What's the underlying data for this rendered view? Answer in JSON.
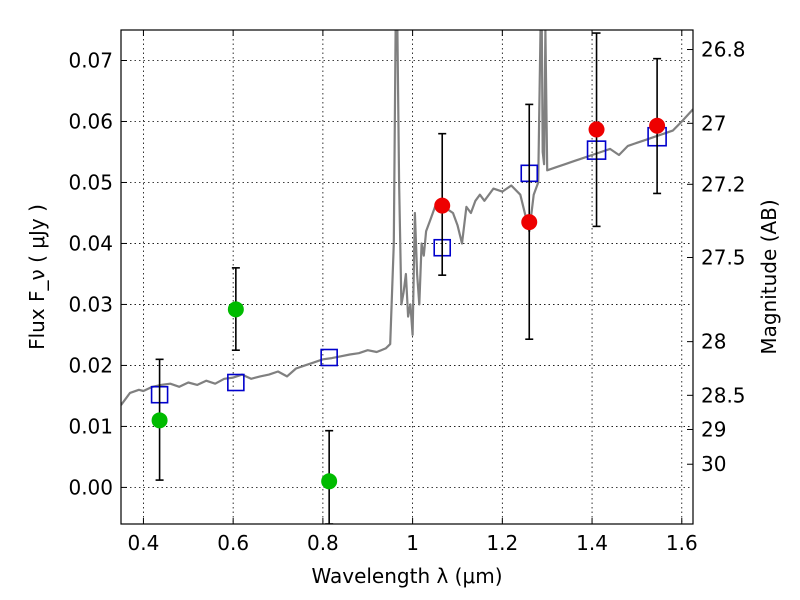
{
  "chart_data": {
    "type": "scatter",
    "xlabel": "Wavelength  λ (μm)",
    "ylabel": "Flux  F_ν  ( μJy )",
    "ylabel_right": "Magnitude (AB)",
    "xlim": [
      0.35,
      1.625
    ],
    "ylim": [
      -0.006,
      0.075
    ],
    "grid": true,
    "x_ticks": [
      {
        "value": 0.4,
        "label": "0.4"
      },
      {
        "value": 0.6,
        "label": "0.6"
      },
      {
        "value": 0.8,
        "label": "0.8"
      },
      {
        "value": 1.0,
        "label": "1"
      },
      {
        "value": 1.2,
        "label": "1.2"
      },
      {
        "value": 1.4,
        "label": "1.4"
      },
      {
        "value": 1.6,
        "label": "1.6"
      }
    ],
    "y_ticks": [
      {
        "value": 0.0,
        "label": "0.00"
      },
      {
        "value": 0.01,
        "label": "0.01"
      },
      {
        "value": 0.02,
        "label": "0.02"
      },
      {
        "value": 0.03,
        "label": "0.03"
      },
      {
        "value": 0.04,
        "label": "0.04"
      },
      {
        "value": 0.05,
        "label": "0.05"
      },
      {
        "value": 0.06,
        "label": "0.06"
      },
      {
        "value": 0.07,
        "label": "0.07"
      }
    ],
    "y_right_ticks": [
      {
        "flux": 0.0718,
        "label": "26.8"
      },
      {
        "flux": 0.0597,
        "label": "27"
      },
      {
        "flux": 0.0497,
        "label": "27.2"
      },
      {
        "flux": 0.0377,
        "label": "27.5"
      },
      {
        "flux": 0.0239,
        "label": "28"
      },
      {
        "flux": 0.0151,
        "label": "28.5"
      },
      {
        "flux": 0.0095,
        "label": "29"
      },
      {
        "flux": 0.0038,
        "label": "30"
      }
    ],
    "series": [
      {
        "kind": "line",
        "color": "#808080",
        "x": [
          0.35,
          0.37,
          0.39,
          0.4,
          0.42,
          0.44,
          0.46,
          0.48,
          0.5,
          0.52,
          0.54,
          0.56,
          0.58,
          0.6,
          0.62,
          0.64,
          0.66,
          0.68,
          0.7,
          0.72,
          0.74,
          0.76,
          0.78,
          0.8,
          0.82,
          0.84,
          0.86,
          0.88,
          0.9,
          0.92,
          0.94,
          0.95,
          0.958,
          0.962,
          0.966,
          0.97,
          0.975,
          0.98,
          0.985,
          0.99,
          0.995,
          1.0,
          1.005,
          1.01,
          1.015,
          1.02,
          1.025,
          1.03,
          1.04,
          1.05,
          1.06,
          1.07,
          1.08,
          1.09,
          1.1,
          1.11,
          1.12,
          1.13,
          1.14,
          1.15,
          1.16,
          1.18,
          1.2,
          1.22,
          1.24,
          1.26,
          1.27,
          1.28,
          1.285,
          1.288,
          1.29,
          1.293,
          1.296,
          1.3,
          1.32,
          1.34,
          1.36,
          1.38,
          1.4,
          1.42,
          1.44,
          1.46,
          1.48,
          1.5,
          1.52,
          1.54,
          1.56,
          1.58,
          1.6,
          1.625
        ],
        "y": [
          0.0135,
          0.0155,
          0.016,
          0.0158,
          0.0165,
          0.0168,
          0.017,
          0.0165,
          0.0172,
          0.0168,
          0.0175,
          0.017,
          0.0178,
          0.018,
          0.0185,
          0.0178,
          0.0182,
          0.0185,
          0.019,
          0.0182,
          0.0195,
          0.02,
          0.0205,
          0.021,
          0.0212,
          0.0215,
          0.0218,
          0.022,
          0.0225,
          0.0222,
          0.0228,
          0.0235,
          0.04,
          0.075,
          0.075,
          0.05,
          0.03,
          0.032,
          0.035,
          0.028,
          0.03,
          0.025,
          0.045,
          0.035,
          0.03,
          0.04,
          0.038,
          0.042,
          0.044,
          0.046,
          0.0465,
          0.046,
          0.0455,
          0.045,
          0.043,
          0.04,
          0.046,
          0.045,
          0.047,
          0.048,
          0.047,
          0.049,
          0.0485,
          0.0495,
          0.048,
          0.042,
          0.048,
          0.05,
          0.075,
          0.075,
          0.055,
          0.053,
          0.075,
          0.052,
          0.0525,
          0.053,
          0.0535,
          0.054,
          0.0545,
          0.055,
          0.0555,
          0.0545,
          0.056,
          0.0565,
          0.057,
          0.0575,
          0.058,
          0.0585,
          0.06,
          0.062
        ]
      },
      {
        "kind": "squares",
        "color": "#0000cc",
        "points": [
          {
            "x": 0.436,
            "y": 0.0152
          },
          {
            "x": 0.606,
            "y": 0.0172
          },
          {
            "x": 0.814,
            "y": 0.0213
          },
          {
            "x": 1.066,
            "y": 0.0393
          },
          {
            "x": 1.26,
            "y": 0.0515
          },
          {
            "x": 1.41,
            "y": 0.0553
          },
          {
            "x": 1.545,
            "y": 0.0575
          }
        ]
      },
      {
        "kind": "points",
        "color": "#00bb00",
        "points": [
          {
            "x": 0.436,
            "y": 0.011,
            "yerr_low": 0.0012,
            "yerr_high": 0.021
          },
          {
            "x": 0.606,
            "y": 0.0292,
            "yerr_low": 0.0225,
            "yerr_high": 0.036
          },
          {
            "x": 0.814,
            "y": 0.001,
            "yerr_low": -0.006,
            "yerr_high": 0.0093
          }
        ]
      },
      {
        "kind": "points",
        "color": "#ee0000",
        "points": [
          {
            "x": 1.066,
            "y": 0.0462,
            "yerr_low": 0.0348,
            "yerr_high": 0.058
          },
          {
            "x": 1.26,
            "y": 0.0435,
            "yerr_low": 0.0243,
            "yerr_high": 0.0628
          },
          {
            "x": 1.41,
            "y": 0.0587,
            "yerr_low": 0.0428,
            "yerr_high": 0.0745
          },
          {
            "x": 1.545,
            "y": 0.0593,
            "yerr_low": 0.0482,
            "yerr_high": 0.0703
          }
        ]
      }
    ]
  }
}
